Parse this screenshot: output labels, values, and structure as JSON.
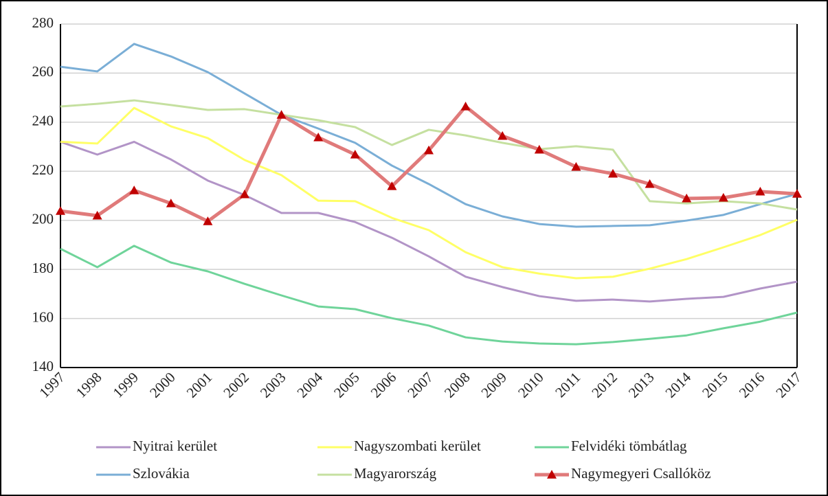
{
  "chart_data": {
    "type": "line",
    "categories": [
      "1997",
      "1998",
      "1999",
      "2000",
      "2001",
      "2002",
      "2003",
      "2004",
      "2005",
      "2006",
      "2007",
      "2008",
      "2009",
      "2010",
      "2011",
      "2012",
      "2013",
      "2014",
      "2015",
      "2016",
      "2017"
    ],
    "ylim": [
      140,
      280
    ],
    "yticks": [
      140,
      160,
      180,
      200,
      220,
      240,
      260,
      280
    ],
    "grid": true,
    "legend": "bottom",
    "series": [
      {
        "name": "Nyitrai kerület",
        "color": "#b294c7",
        "values": [
          232,
          226.8,
          232,
          224.8,
          216.2,
          210.3,
          203,
          203,
          199.3,
          192.9,
          185.3,
          177,
          172.8,
          169.1,
          167.2,
          167.7,
          166.9,
          168,
          168.8,
          172.2,
          175
        ]
      },
      {
        "name": "Nagyszombati kerület",
        "color": "#ffff66",
        "values": [
          232,
          231.3,
          245.8,
          238.3,
          233.5,
          224.6,
          218.4,
          208,
          207.8,
          201,
          196,
          187,
          180.9,
          178.3,
          176.4,
          177,
          180.3,
          184.2,
          189,
          194,
          200.2
        ]
      },
      {
        "name": "Felvidéki tömbátlag",
        "color": "#6fd49a",
        "values": [
          188.4,
          180.9,
          189.6,
          182.8,
          179.2,
          174.1,
          169.4,
          164.9,
          163.8,
          160.1,
          157.1,
          152.3,
          150.6,
          149.8,
          149.5,
          150.4,
          151.7,
          153.1,
          156,
          158.7,
          162.4
        ]
      },
      {
        "name": "Szlovákia",
        "color": "#7aaed6",
        "values": [
          262.6,
          260.7,
          271.9,
          266.8,
          260.4,
          251.7,
          243,
          237.4,
          231.6,
          222.3,
          214.8,
          206.6,
          201.6,
          198.5,
          197.4,
          197.7,
          198,
          199.9,
          202.2,
          206.6,
          210.8
        ]
      },
      {
        "name": "Magyarország",
        "color": "#c5e0a0",
        "values": [
          246.4,
          247.5,
          248.9,
          247,
          245,
          245.3,
          243,
          240.8,
          238,
          230.7,
          236.9,
          234.6,
          231.6,
          229,
          230.2,
          228.8,
          207.8,
          206.9,
          207.8,
          206.9,
          204.4
        ]
      },
      {
        "name": "Nagymegyeri Csallóköz",
        "color": "#e07a7a",
        "marker": "triangle",
        "marker_color": "#c00000",
        "values": [
          203.8,
          201.9,
          212.2,
          206.9,
          199.6,
          210.6,
          243,
          233.8,
          226.8,
          213.9,
          228.5,
          246.4,
          234.4,
          228.8,
          221.8,
          219,
          214.8,
          208.9,
          209.2,
          211.7,
          210.8
        ]
      }
    ]
  }
}
